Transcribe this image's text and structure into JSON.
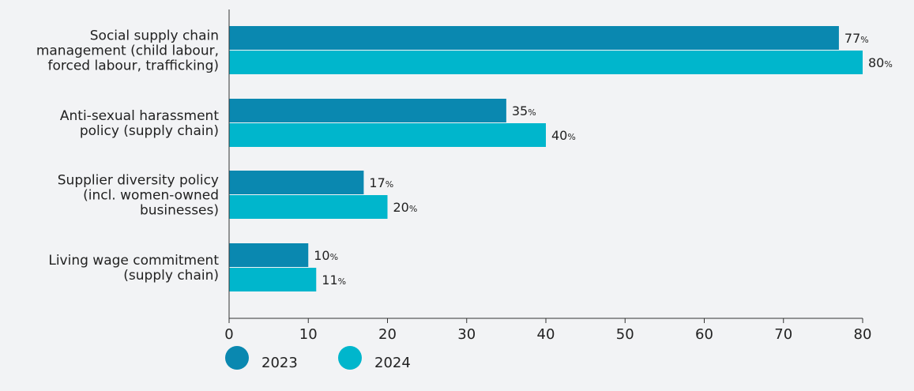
{
  "colors": {
    "background": "#f2f3f5",
    "series_2023": "#0a88b0",
    "series_2024": "#00b6cc",
    "axis": "#333333",
    "text": "#222222"
  },
  "chart_data": {
    "type": "bar",
    "orientation": "horizontal",
    "title": "",
    "xlabel": "",
    "ylabel": "",
    "xlim": [
      0,
      80
    ],
    "x_ticks": [
      "0",
      "10",
      "20",
      "30",
      "40",
      "50",
      "60",
      "70",
      "80"
    ],
    "grid": false,
    "legend_position": "bottom-left",
    "value_suffix": "%",
    "categories": [
      [
        "Social supply chain",
        "management (child labour,",
        "forced labour, trafficking)"
      ],
      [
        "Anti-sexual harassment",
        "policy (supply chain)"
      ],
      [
        "Supplier diversity policy",
        "(incl. women-owned",
        "businesses)"
      ],
      [
        "Living wage commitment",
        "(supply chain)"
      ]
    ],
    "series": [
      {
        "name": "2023",
        "color": "#0a88b0",
        "values": [
          77,
          35,
          17,
          10
        ]
      },
      {
        "name": "2024",
        "color": "#00b6cc",
        "values": [
          80,
          40,
          20,
          11
        ]
      }
    ]
  }
}
